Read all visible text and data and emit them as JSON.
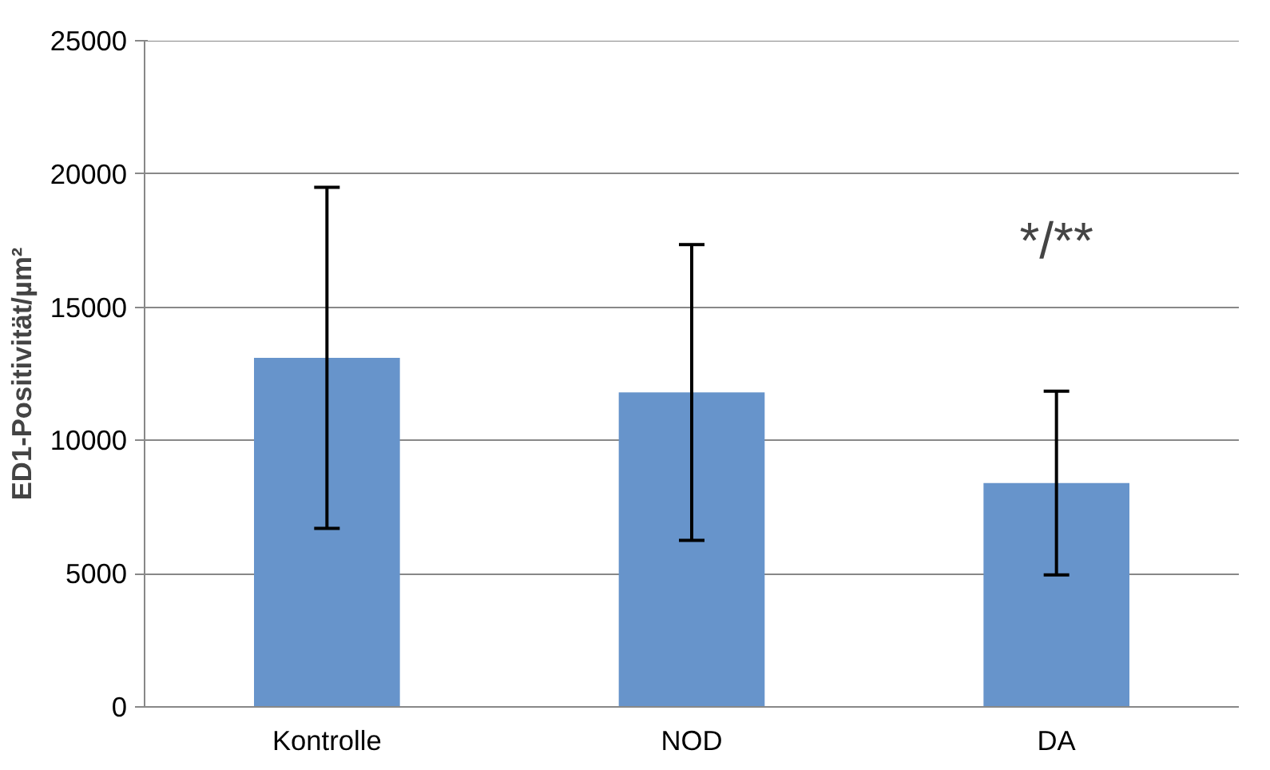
{
  "chart_data": {
    "type": "bar",
    "ylabel": "ED1-Positivität/µm²",
    "categories": [
      "Kontrolle",
      "NOD",
      "DA"
    ],
    "values": [
      13100,
      11800,
      8400
    ],
    "errors": [
      6400,
      5550,
      3450
    ],
    "color": "#6794cb",
    "ylim": [
      0,
      25000
    ],
    "yticks": [
      0,
      5000,
      10000,
      15000,
      20000,
      25000
    ],
    "grid": "y",
    "annotations": [
      "*/**"
    ]
  }
}
